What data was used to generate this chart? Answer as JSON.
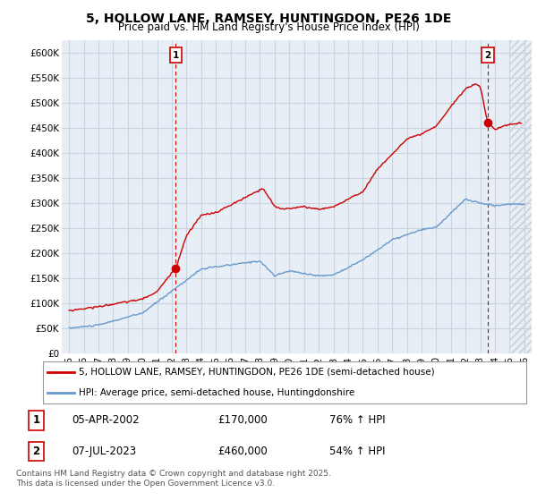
{
  "title1": "5, HOLLOW LANE, RAMSEY, HUNTINGDON, PE26 1DE",
  "title2": "Price paid vs. HM Land Registry's House Price Index (HPI)",
  "ylabel_ticks": [
    "£0",
    "£50K",
    "£100K",
    "£150K",
    "£200K",
    "£250K",
    "£300K",
    "£350K",
    "£400K",
    "£450K",
    "£500K",
    "£550K",
    "£600K"
  ],
  "ytick_values": [
    0,
    50000,
    100000,
    150000,
    200000,
    250000,
    300000,
    350000,
    400000,
    450000,
    500000,
    550000,
    600000
  ],
  "ylim": [
    0,
    625000
  ],
  "xlim_start": 1994.5,
  "xlim_end": 2026.5,
  "background_color": "#e8eef5",
  "fig_bg_color": "#ffffff",
  "red_line_color": "#cc0000",
  "blue_line_color": "#6699cc",
  "marker1_date_x": 2002.27,
  "marker1_price": 170000,
  "marker2_date_x": 2023.52,
  "marker2_price": 460000,
  "legend_label1": "5, HOLLOW LANE, RAMSEY, HUNTINGDON, PE26 1DE (semi-detached house)",
  "legend_label2": "HPI: Average price, semi-detached house, Huntingdonshire",
  "table_row1": [
    "1",
    "05-APR-2002",
    "£170,000",
    "76% ↑ HPI"
  ],
  "table_row2": [
    "2",
    "07-JUL-2023",
    "£460,000",
    "54% ↑ HPI"
  ],
  "footnote": "Contains HM Land Registry data © Crown copyright and database right 2025.\nThis data is licensed under the Open Government Licence v3.0.",
  "grid_color": "#c8d4e0",
  "dashed_line_color": "#cc0000",
  "hatch_start": 2025.0
}
